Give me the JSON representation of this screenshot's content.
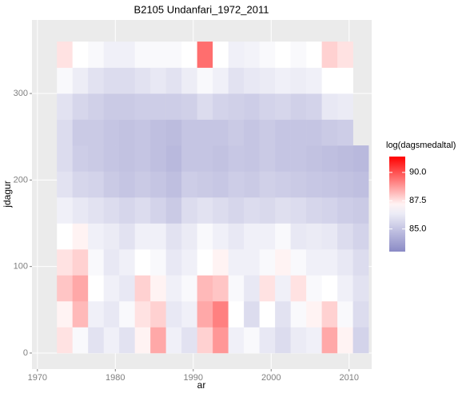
{
  "chart_data": {
    "type": "heatmap",
    "title": "B2105 Undanfari_1972_2011",
    "x_label": "ar",
    "y_label": "jdagur",
    "legend_title": "log(dagsmedaltal)",
    "x": [
      1973.5,
      1975.5,
      1977.5,
      1979.5,
      1981.5,
      1983.5,
      1985.5,
      1987.5,
      1989.5,
      1991.5,
      1993.5,
      1995.5,
      1997.5,
      1999.5,
      2001.5,
      2003.5,
      2005.5,
      2007.5,
      2009.5,
      2011.5
    ],
    "y": [
      15,
      45,
      75,
      105,
      135,
      165,
      195,
      225,
      255,
      285,
      315,
      345
    ],
    "z": [
      [
        87.5,
        86.8,
        86,
        86.5,
        86,
        87.2,
        88.5,
        86.5,
        86,
        87.8,
        88.8,
        86.5,
        86.8,
        86.2,
        85.8,
        86.3,
        86.5,
        88.5,
        87.2,
        85.5
      ],
      [
        87.2,
        88.2,
        86.5,
        86.2,
        86.8,
        87.5,
        87.8,
        86.2,
        86.5,
        88.5,
        89.2,
        87,
        85.8,
        87,
        86,
        86.8,
        87.2,
        87.8,
        86.8,
        85.8
      ],
      [
        88,
        88.5,
        87,
        86.5,
        86.2,
        87.8,
        87.2,
        86.5,
        86.8,
        88.2,
        88,
        86.8,
        86.2,
        87.5,
        86.5,
        87.5,
        86.8,
        87,
        86.5,
        86
      ],
      [
        87.5,
        87.8,
        86.8,
        86.2,
        86.5,
        87,
        86.8,
        86.2,
        86.5,
        87,
        87.2,
        86.5,
        86.5,
        86.8,
        87.2,
        86.8,
        86.5,
        86.5,
        86.2,
        85.8
      ],
      [
        87,
        87.2,
        86.5,
        86.3,
        86,
        86.5,
        86.5,
        86,
        86.3,
        86.8,
        86.5,
        86.2,
        86.5,
        86.5,
        86.8,
        86.2,
        86.3,
        86.2,
        85.8,
        85.5
      ],
      [
        86.5,
        86.2,
        86,
        85.8,
        85.6,
        85.8,
        85.5,
        85.2,
        85.8,
        86,
        85.8,
        85.6,
        85.8,
        85.7,
        85.9,
        85.8,
        85.6,
        85.5,
        85.3,
        85.2
      ],
      [
        86,
        85.6,
        85.5,
        85.2,
        85,
        85.2,
        85,
        84.8,
        85.3,
        85.2,
        85.1,
        85.3,
        85.2,
        85.4,
        85.3,
        85.2,
        85.1,
        85,
        84.9,
        84.8
      ],
      [
        85.8,
        85.3,
        85.2,
        85,
        84.9,
        85,
        84.8,
        84.6,
        85,
        85,
        84.9,
        85.1,
        85,
        85.2,
        85,
        85,
        84.9,
        84.8,
        84.7,
        84.6
      ],
      [
        85.8,
        85.2,
        85.2,
        85,
        84.9,
        85,
        84.8,
        84.7,
        85,
        85,
        85,
        85.2,
        85,
        85.2,
        85,
        85,
        85,
        85.2,
        85.3,
        null
      ],
      [
        86,
        85.6,
        85.4,
        85.2,
        85.2,
        85.3,
        85.3,
        85.3,
        85.4,
        85.8,
        85.5,
        85.4,
        85.3,
        85.5,
        85.6,
        85.4,
        85.5,
        86.2,
        86.3,
        null
      ],
      [
        86.8,
        86.4,
        86,
        85.8,
        85.8,
        86,
        86.2,
        86,
        86.4,
        86.8,
        86.5,
        86,
        86.2,
        86.3,
        86.5,
        86.4,
        86.5,
        87,
        87,
        null
      ],
      [
        87.5,
        87,
        86.8,
        86.5,
        86.5,
        86.8,
        86.8,
        86.8,
        87,
        89.5,
        87,
        86.5,
        86.6,
        86.8,
        87,
        86.8,
        87,
        87.8,
        87.5,
        null
      ]
    ],
    "xlim": [
      1969.3,
      2012.9
    ],
    "xticks": [
      1970,
      1980,
      1990,
      2000,
      2010
    ],
    "ylim": [
      -18.5,
      385
    ],
    "yticks": [
      0,
      100,
      200,
      300
    ],
    "zlim": [
      83.0,
      91.4
    ],
    "zticks": [
      {
        "value": 85,
        "label": "85.0"
      },
      {
        "value": 87.5,
        "label": "87.5"
      },
      {
        "value": 90,
        "label": "90.0"
      }
    ],
    "colorscale": {
      "low": "#8a8ac6",
      "mid": "#ffffff",
      "high": "#ff0000",
      "midpoint": 87
    },
    "grid": true
  }
}
